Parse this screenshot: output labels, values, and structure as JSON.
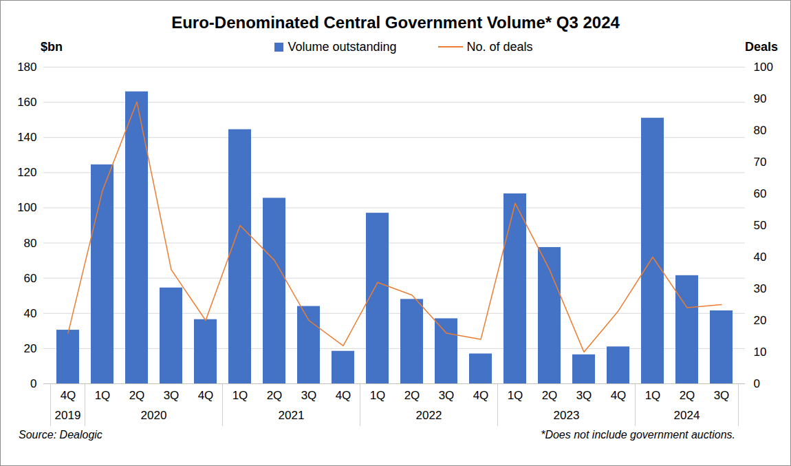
{
  "chart_data": {
    "type": "bar",
    "title": "Euro-Denominated Central Government Volume* Q3 2024",
    "y_label": "$bn",
    "y2_label": "Deals",
    "source": "Source: Dealogic",
    "note": "*Does not include government auctions.",
    "categories": [
      "4Q",
      "1Q",
      "2Q",
      "3Q",
      "4Q",
      "1Q",
      "2Q",
      "3Q",
      "4Q",
      "1Q",
      "2Q",
      "3Q",
      "4Q",
      "1Q",
      "2Q",
      "3Q",
      "4Q",
      "1Q",
      "2Q",
      "3Q"
    ],
    "category_groups": [
      "2019",
      "2020",
      "2020",
      "2020",
      "2020",
      "2021",
      "2021",
      "2021",
      "2021",
      "2022",
      "2022",
      "2022",
      "2022",
      "2023",
      "2023",
      "2023",
      "2023",
      "2024",
      "2024",
      "2024"
    ],
    "series": [
      {
        "name": "Volume outstanding",
        "type": "bar",
        "color": "#4472c4",
        "values": [
          30.5,
          124.5,
          166,
          54.5,
          36.5,
          144.5,
          105.5,
          44,
          18.5,
          97,
          48,
          37,
          17,
          108,
          77.5,
          16.5,
          21,
          151,
          61.5,
          41.5
        ]
      },
      {
        "name": "No. of deals",
        "type": "line",
        "axis": "y2",
        "color": "#ed7d31",
        "values": [
          16,
          61,
          89,
          36,
          20,
          50,
          39,
          20,
          12,
          32,
          28,
          16,
          14,
          57,
          36,
          10,
          23,
          40,
          24,
          25
        ]
      }
    ],
    "ylim": [
      0,
      180
    ],
    "yticks": [
      0,
      20,
      40,
      60,
      80,
      100,
      120,
      140,
      160,
      180
    ],
    "y2lim": [
      0,
      100
    ],
    "y2ticks": [
      0,
      10,
      20,
      30,
      40,
      50,
      60,
      70,
      80,
      90,
      100
    ],
    "grid": true
  }
}
